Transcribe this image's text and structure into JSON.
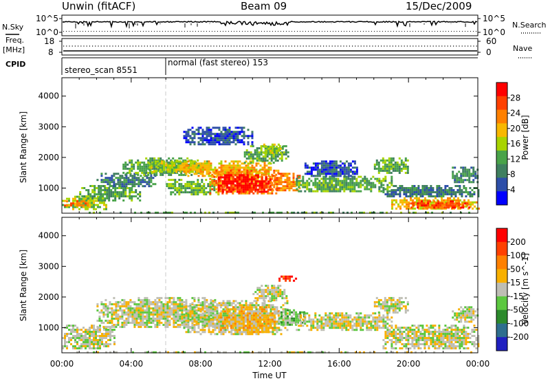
{
  "header": {
    "station_title": "Unwin (fitACF)",
    "beam": "Beam 09",
    "date": "15/Dec/2009"
  },
  "sky_panel": {
    "left_label": "N.Sky",
    "right_label": "N.Search",
    "left_ticks": [
      "10^5",
      "10^0"
    ],
    "right_ticks": [
      "10^5",
      "10^0"
    ]
  },
  "freq_panel": {
    "left_label_line1": "Freq.",
    "left_label_line2": "[MHz]",
    "right_label": "Nave",
    "left_ticks": [
      "18",
      "8"
    ],
    "right_ticks": [
      "60",
      "0"
    ]
  },
  "cpid_panel": {
    "label": "CPID",
    "segments": [
      {
        "start_hour": 0,
        "end_hour": 6,
        "text": "stereo_scan 8551"
      },
      {
        "start_hour": 6,
        "end_hour": 24,
        "text": "normal (fast stereo) 153"
      }
    ]
  },
  "colors": {
    "power_scale": [
      "#0000ff",
      "#2d4ea8",
      "#3f7f5f",
      "#49a349",
      "#a8d400",
      "#f8b800",
      "#ff8000",
      "#ff4000",
      "#ff0000"
    ],
    "velocity_scale": [
      "#2020c0",
      "#2e6e8e",
      "#2c8a2c",
      "#5cc840",
      "#c8c8c0",
      "#f8b000",
      "#ff8000",
      "#ff4000",
      "#ff0000"
    ],
    "ground_scatter": "#bebeb4"
  },
  "chart_data": [
    {
      "type": "heatmap",
      "name": "power",
      "ylabel": "Slant Range [km]",
      "ylim": [
        180,
        4600
      ],
      "yticks": [
        "1000",
        "2000",
        "3000",
        "4000"
      ],
      "colorbar": {
        "label": "Power [dB]",
        "ticks": [
          "4",
          "8",
          "12",
          "16",
          "20",
          "24",
          "28"
        ],
        "range": [
          0,
          32
        ]
      },
      "features": [
        {
          "t_start": 0.0,
          "t_end": 24.0,
          "r_start": 200,
          "r_end": 230,
          "level": 3
        },
        {
          "t_start": 0.0,
          "t_end": 2.5,
          "r_start": 300,
          "r_end": 750,
          "level": 4
        },
        {
          "t_start": 0.0,
          "t_end": 1.5,
          "r_start": 400,
          "r_end": 600,
          "level": 6
        },
        {
          "t_start": 1.0,
          "t_end": 4.5,
          "r_start": 600,
          "r_end": 1100,
          "level": 3
        },
        {
          "t_start": 2.0,
          "t_end": 5.5,
          "r_start": 1050,
          "r_end": 1500,
          "level": 2
        },
        {
          "t_start": 3.5,
          "t_end": 8.0,
          "r_start": 1400,
          "r_end": 2000,
          "level": 3
        },
        {
          "t_start": 5.0,
          "t_end": 8.5,
          "r_start": 1550,
          "r_end": 1900,
          "level": 4
        },
        {
          "t_start": 6.0,
          "t_end": 9.0,
          "r_start": 800,
          "r_end": 1300,
          "level": 3
        },
        {
          "t_start": 7.0,
          "t_end": 12.0,
          "r_start": 1400,
          "r_end": 1900,
          "level": 5
        },
        {
          "t_start": 8.5,
          "t_end": 12.5,
          "r_start": 800,
          "r_end": 1600,
          "level": 6
        },
        {
          "t_start": 9.0,
          "t_end": 12.0,
          "r_start": 850,
          "r_end": 1450,
          "level": 8
        },
        {
          "t_start": 12.0,
          "t_end": 13.7,
          "r_start": 900,
          "r_end": 1500,
          "level": 6
        },
        {
          "t_start": 10.5,
          "t_end": 13.0,
          "r_start": 1850,
          "r_end": 2400,
          "level": 3
        },
        {
          "t_start": 11.5,
          "t_end": 12.8,
          "r_start": 2150,
          "r_end": 2450,
          "level": 4
        },
        {
          "t_start": 7.0,
          "t_end": 11.0,
          "r_start": 2400,
          "r_end": 3000,
          "level": 1
        },
        {
          "t_start": 13.5,
          "t_end": 19.0,
          "r_start": 900,
          "r_end": 1400,
          "level": 3
        },
        {
          "t_start": 14.0,
          "t_end": 17.0,
          "r_start": 1400,
          "r_end": 1900,
          "level": 1
        },
        {
          "t_start": 18.0,
          "t_end": 20.0,
          "r_start": 1500,
          "r_end": 2000,
          "level": 3
        },
        {
          "t_start": 18.5,
          "t_end": 24.0,
          "r_start": 700,
          "r_end": 1100,
          "level": 2
        },
        {
          "t_start": 19.0,
          "t_end": 24.0,
          "r_start": 300,
          "r_end": 700,
          "level": 5
        },
        {
          "t_start": 20.0,
          "t_end": 23.5,
          "r_start": 350,
          "r_end": 600,
          "level": 7
        },
        {
          "t_start": 22.5,
          "t_end": 24.0,
          "r_start": 1200,
          "r_end": 1700,
          "level": 2
        }
      ]
    },
    {
      "type": "heatmap",
      "name": "velocity",
      "ylabel": "Slant Range [km]",
      "ylim": [
        180,
        4600
      ],
      "yticks": [
        "1000",
        "2000",
        "3000",
        "4000"
      ],
      "colorbar": {
        "label": "Velocity [m s^-1]",
        "ticks": [
          "200",
          "100",
          "50",
          "15",
          "-15",
          "-50",
          "-100",
          "-200"
        ]
      },
      "features": [
        {
          "t_start": 0.0,
          "t_end": 24.0,
          "r_start": 200,
          "r_end": 230,
          "level": 4
        },
        {
          "t_start": 0.0,
          "t_end": 3.0,
          "r_start": 300,
          "r_end": 1100,
          "level": 4
        },
        {
          "t_start": 2.0,
          "t_end": 9.0,
          "r_start": 1000,
          "r_end": 2000,
          "level": 4
        },
        {
          "t_start": 7.0,
          "t_end": 13.0,
          "r_start": 800,
          "r_end": 1900,
          "level": 4
        },
        {
          "t_start": 9.0,
          "t_end": 12.5,
          "r_start": 850,
          "r_end": 1700,
          "level": 5
        },
        {
          "t_start": 12.5,
          "t_end": 14.0,
          "r_start": 1100,
          "r_end": 1600,
          "level": 3
        },
        {
          "t_start": 11.0,
          "t_end": 13.0,
          "r_start": 1900,
          "r_end": 2400,
          "level": 4
        },
        {
          "t_start": 12.5,
          "t_end": 13.5,
          "r_start": 2550,
          "r_end": 2700,
          "level": 7
        },
        {
          "t_start": 13.5,
          "t_end": 19.0,
          "r_start": 900,
          "r_end": 1500,
          "level": 4
        },
        {
          "t_start": 18.0,
          "t_end": 20.0,
          "r_start": 1500,
          "r_end": 2000,
          "level": 4
        },
        {
          "t_start": 18.5,
          "t_end": 24.0,
          "r_start": 300,
          "r_end": 1100,
          "level": 4
        },
        {
          "t_start": 22.5,
          "t_end": 24.0,
          "r_start": 1200,
          "r_end": 1700,
          "level": 4
        }
      ]
    }
  ],
  "x_axis": {
    "label": "Time UT",
    "ticks": [
      "00:00",
      "04:00",
      "08:00",
      "12:00",
      "16:00",
      "20:00",
      "00:00"
    ],
    "range_hours": [
      0,
      24
    ]
  }
}
